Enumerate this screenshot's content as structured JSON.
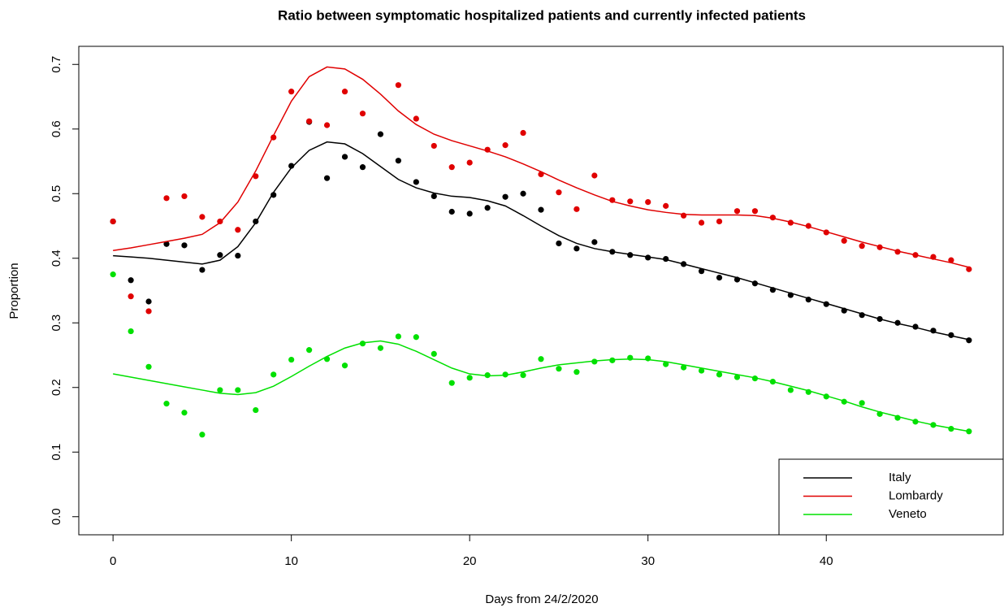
{
  "chart_data": {
    "type": "scatter",
    "title": "Ratio between symptomatic hospitalized patients and currently infected patients",
    "xlabel": "Days from 24/2/2020",
    "ylabel": "Proportion",
    "x": [
      0,
      1,
      2,
      3,
      4,
      5,
      6,
      7,
      8,
      9,
      10,
      11,
      12,
      13,
      14,
      15,
      16,
      17,
      18,
      19,
      20,
      21,
      22,
      23,
      24,
      25,
      26,
      27,
      28,
      29,
      30,
      31,
      32,
      33,
      34,
      35,
      36,
      37,
      38,
      39,
      40,
      41,
      42,
      43,
      44,
      45,
      46,
      47,
      48
    ],
    "xlim": [
      -1.92,
      49.92
    ],
    "xticks": [
      0,
      10,
      20,
      30,
      40
    ],
    "ylim": [
      -0.028,
      0.728
    ],
    "yticks": [
      {
        "value": 0,
        "label": "0.0"
      },
      0.1,
      0.2,
      0.3,
      0.4,
      0.5,
      0.6,
      0.7
    ],
    "legend": "bottomright",
    "series": [
      {
        "name": "Italy",
        "color": "#000000",
        "values": [
          0.457,
          0.366,
          0.333,
          0.422,
          0.42,
          0.382,
          0.405,
          0.404,
          0.457,
          0.498,
          0.543,
          0.611,
          0.524,
          0.557,
          0.541,
          0.592,
          0.551,
          0.518,
          0.496,
          0.472,
          0.469,
          0.478,
          0.495,
          0.5,
          0.475,
          0.423,
          0.415,
          0.425,
          0.41,
          0.405,
          0.401,
          0.399,
          0.391,
          0.38,
          0.37,
          0.367,
          0.361,
          0.351,
          0.343,
          0.336,
          0.329,
          0.319,
          0.312,
          0.306,
          0.3,
          0.294,
          0.288,
          0.281,
          0.273
        ],
        "fitted": [
          0.404,
          0.402,
          0.4,
          0.397,
          0.394,
          0.391,
          0.397,
          0.418,
          0.455,
          0.502,
          0.54,
          0.567,
          0.58,
          0.577,
          0.562,
          0.542,
          0.522,
          0.509,
          0.501,
          0.496,
          0.494,
          0.489,
          0.481,
          0.466,
          0.45,
          0.435,
          0.423,
          0.415,
          0.41,
          0.406,
          0.402,
          0.398,
          0.391,
          0.384,
          0.377,
          0.37,
          0.362,
          0.354,
          0.346,
          0.338,
          0.33,
          0.322,
          0.314,
          0.306,
          0.299,
          0.293,
          0.286,
          0.28,
          0.274
        ]
      },
      {
        "name": "Lombardy",
        "color": "#e00000",
        "values": [
          0.457,
          0.341,
          0.318,
          0.493,
          0.496,
          0.464,
          0.457,
          0.444,
          0.527,
          0.587,
          0.658,
          0.612,
          0.606,
          0.658,
          0.624,
          null,
          0.668,
          0.616,
          0.574,
          0.541,
          0.548,
          0.568,
          0.575,
          0.594,
          0.53,
          0.502,
          0.476,
          0.528,
          0.49,
          0.488,
          0.487,
          0.481,
          0.466,
          0.455,
          0.457,
          0.473,
          0.473,
          0.463,
          0.455,
          0.45,
          0.44,
          0.427,
          0.419,
          0.417,
          0.41,
          0.405,
          0.402,
          0.397,
          0.383
        ],
        "fitted": [
          0.412,
          0.416,
          0.421,
          0.426,
          0.431,
          0.437,
          0.455,
          0.487,
          0.535,
          0.59,
          0.643,
          0.681,
          0.696,
          0.693,
          0.677,
          0.654,
          0.628,
          0.607,
          0.592,
          0.582,
          0.574,
          0.566,
          0.557,
          0.546,
          0.534,
          0.521,
          0.509,
          0.498,
          0.488,
          0.481,
          0.475,
          0.471,
          0.468,
          0.467,
          0.467,
          0.467,
          0.466,
          0.462,
          0.456,
          0.449,
          0.441,
          0.433,
          0.425,
          0.418,
          0.411,
          0.405,
          0.399,
          0.393,
          0.386
        ]
      },
      {
        "name": "Veneto",
        "color": "#00e000",
        "values": [
          0.375,
          0.287,
          0.232,
          0.175,
          0.161,
          0.127,
          0.196,
          0.196,
          0.165,
          0.22,
          0.243,
          0.258,
          0.244,
          0.234,
          0.268,
          0.261,
          0.279,
          0.278,
          0.252,
          0.207,
          0.215,
          0.219,
          0.22,
          0.219,
          0.244,
          0.229,
          0.224,
          0.24,
          0.242,
          0.246,
          0.245,
          0.236,
          0.231,
          0.226,
          0.22,
          0.216,
          0.214,
          0.209,
          0.196,
          0.193,
          0.186,
          0.178,
          0.176,
          0.159,
          0.153,
          0.147,
          0.142,
          0.136,
          0.132
        ],
        "fitted": [
          0.221,
          0.216,
          0.211,
          0.206,
          0.201,
          0.196,
          0.191,
          0.189,
          0.192,
          0.202,
          0.217,
          0.233,
          0.248,
          0.261,
          0.269,
          0.272,
          0.267,
          0.256,
          0.243,
          0.23,
          0.221,
          0.218,
          0.219,
          0.224,
          0.23,
          0.235,
          0.238,
          0.241,
          0.243,
          0.244,
          0.243,
          0.24,
          0.235,
          0.23,
          0.225,
          0.22,
          0.215,
          0.209,
          0.202,
          0.195,
          0.187,
          0.179,
          0.17,
          0.162,
          0.155,
          0.148,
          0.142,
          0.137,
          0.132
        ]
      }
    ]
  }
}
